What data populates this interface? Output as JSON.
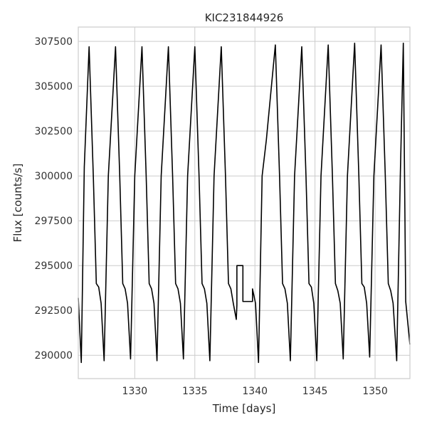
{
  "chart_data": {
    "type": "line",
    "title": "KIC231844926",
    "xlabel": "Time [days]",
    "ylabel": "Flux [counts/s]",
    "xlim": [
      1325.3,
      1352.9
    ],
    "ylim": [
      288700,
      308300
    ],
    "xticks": [
      1330,
      1335,
      1340,
      1345,
      1350
    ],
    "yticks": [
      290000,
      292500,
      295000,
      297500,
      300000,
      302500,
      305000,
      307500
    ],
    "xtick_labels": [
      "1330",
      "1335",
      "1340",
      "1345",
      "1350"
    ],
    "ytick_labels": [
      "290000",
      "292500",
      "295000",
      "297500",
      "300000",
      "302500",
      "305000",
      "307500"
    ],
    "grid": true,
    "line_color": "#000000",
    "series": [
      {
        "period_days": 2.215,
        "maximum": 307200,
        "minimum": 289700,
        "secondary_bump": 293700,
        "peak_times": [
          1326.2,
          1328.4,
          1330.6,
          1332.8,
          1335.0,
          1337.2,
          1341.7,
          1343.9,
          1346.1,
          1348.3,
          1350.5,
          1351.8
        ],
        "gap": {
          "start": 1338.5,
          "end": 1339.8,
          "levels": [
            295000,
            293000
          ]
        },
        "x": [
          1325.3,
          1325.55,
          1325.8,
          1326.2,
          1326.55,
          1326.8,
          1327.0,
          1327.2,
          1327.45,
          1327.8,
          1328.4,
          1328.75,
          1329.0,
          1329.2,
          1329.4,
          1329.65,
          1330.0,
          1330.6,
          1330.95,
          1331.2,
          1331.4,
          1331.6,
          1331.85,
          1332.2,
          1332.8,
          1333.15,
          1333.4,
          1333.6,
          1333.8,
          1334.05,
          1334.4,
          1335.0,
          1335.35,
          1335.6,
          1335.8,
          1336.0,
          1336.25,
          1336.6,
          1337.2,
          1337.55,
          1337.8,
          1338.0,
          1338.2,
          1338.45,
          1338.5,
          1338.5,
          1339.0,
          1339.0,
          1339.8,
          1339.8,
          1340.05,
          1340.3,
          1340.6,
          1340.95,
          1341.7,
          1342.05,
          1342.3,
          1342.5,
          1342.7,
          1342.95,
          1343.3,
          1343.9,
          1344.25,
          1344.5,
          1344.7,
          1344.9,
          1345.15,
          1345.5,
          1346.1,
          1346.45,
          1346.7,
          1346.9,
          1347.1,
          1347.35,
          1347.7,
          1348.3,
          1348.65,
          1348.9,
          1349.1,
          1349.3,
          1349.55,
          1349.9,
          1350.5,
          1350.85,
          1351.1,
          1351.3,
          1351.5,
          1351.8,
          1352.1,
          1352.35,
          1352.55,
          1352.9
        ],
        "y": [
          293200,
          289600,
          300500,
          307200,
          300000,
          294000,
          293800,
          292900,
          289700,
          300000,
          307200,
          300000,
          294000,
          293700,
          292900,
          289800,
          300000,
          307200,
          300000,
          294000,
          293700,
          292900,
          289700,
          300000,
          307200,
          300000,
          294000,
          293700,
          292900,
          289800,
          300000,
          307200,
          300000,
          294000,
          293700,
          292900,
          289700,
          300000,
          307200,
          300000,
          294000,
          293700,
          292900,
          292000,
          292800,
          295000,
          295000,
          293000,
          293000,
          293700,
          292900,
          289600,
          300000,
          302000,
          307300,
          300000,
          294000,
          293700,
          292900,
          289700,
          300000,
          307200,
          300000,
          294000,
          293800,
          292900,
          289700,
          300000,
          307300,
          300000,
          294000,
          293600,
          292900,
          289800,
          300000,
          307400,
          300000,
          294000,
          293800,
          292900,
          289900,
          300000,
          307300,
          300000,
          294000,
          293600,
          292900,
          289700,
          300000,
          307400,
          293000,
          290600
        ]
      }
    ]
  }
}
